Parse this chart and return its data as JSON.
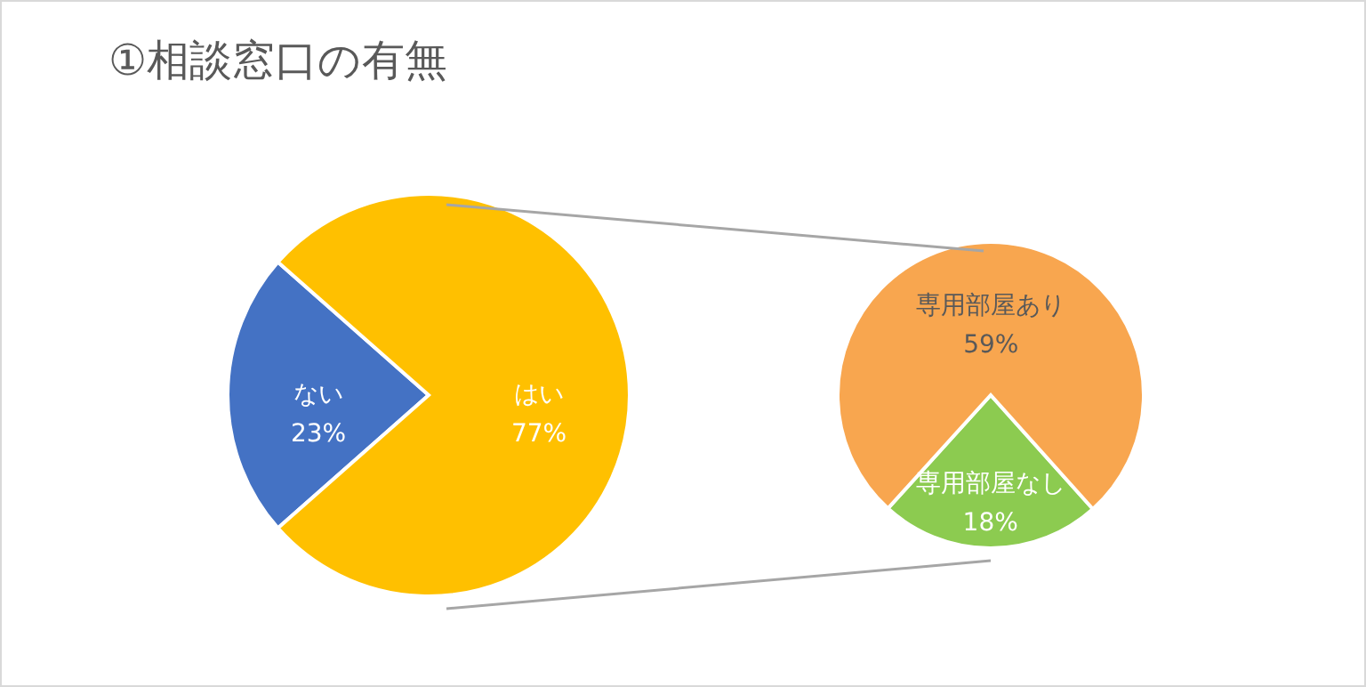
{
  "chart_data": [
    {
      "type": "pie",
      "title": "①相談窓口の有無",
      "categories": [
        "ない",
        "はい"
      ],
      "values": [
        23,
        77
      ],
      "value_labels": [
        "23%",
        "77%"
      ],
      "colors": [
        "#4472c4",
        "#ffc000"
      ]
    },
    {
      "type": "pie",
      "categories": [
        "専用部屋なし",
        "専用部屋あり"
      ],
      "values": [
        18,
        59
      ],
      "value_labels": [
        "18%",
        "59%"
      ],
      "colors": [
        "#8ccb50",
        "#f8a64f"
      ]
    }
  ]
}
